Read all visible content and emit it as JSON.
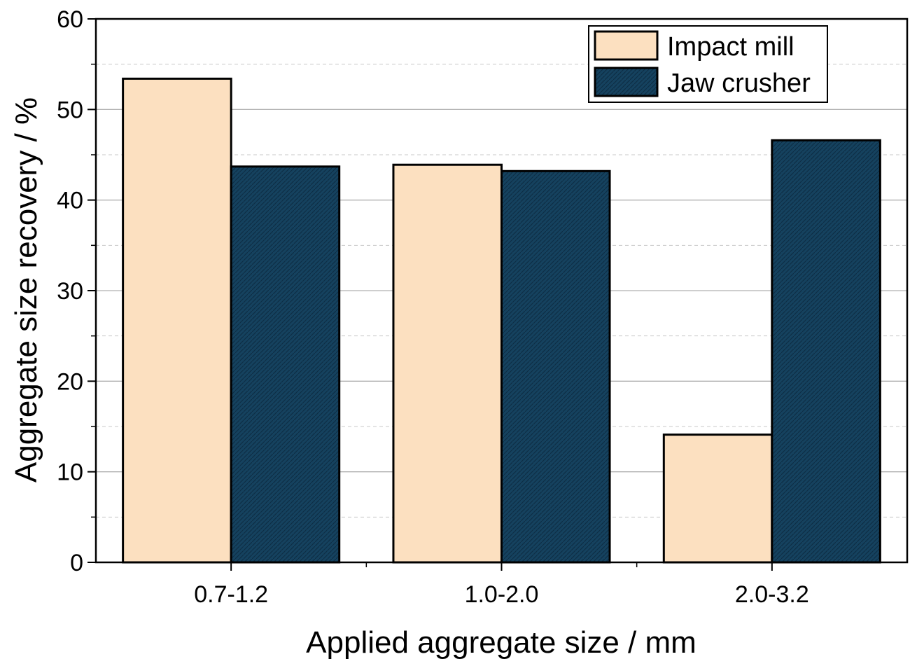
{
  "chart_data": {
    "type": "bar",
    "title": "",
    "xlabel": "Applied aggregate size / mm",
    "ylabel": "Aggregate size recovery / %",
    "categories": [
      "0.7-1.2",
      "1.0-2.0",
      "2.0-3.2"
    ],
    "series": [
      {
        "name": "Impact mill",
        "color": "#FCE0C0",
        "values": [
          53.4,
          43.9,
          14.1
        ]
      },
      {
        "name": "Jaw crusher",
        "color": "#15425F",
        "values": [
          43.7,
          43.2,
          46.6
        ]
      }
    ],
    "ylim": [
      0,
      60
    ],
    "yticks": [
      0,
      10,
      20,
      30,
      40,
      50,
      60
    ],
    "grid": {
      "major": true,
      "minor": true
    },
    "legend_position": "top-right"
  }
}
